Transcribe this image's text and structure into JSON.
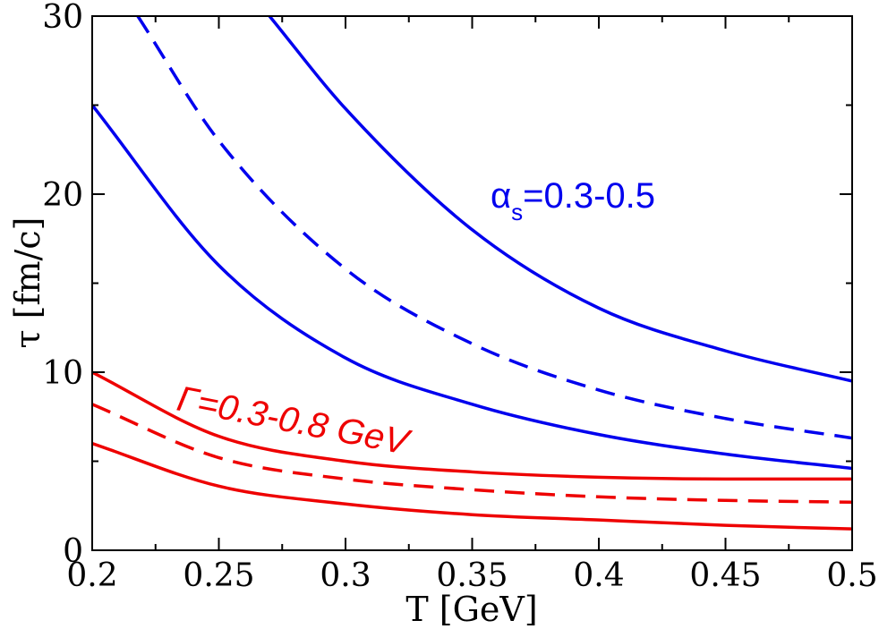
{
  "chart_data": {
    "type": "line",
    "title": "",
    "xlabel": "T [GeV]",
    "ylabel": "τ [fm/c]",
    "xlim": [
      0.2,
      0.5
    ],
    "ylim": [
      0,
      30
    ],
    "x_ticks": [
      "0.2",
      "0.25",
      "0.3",
      "0.35",
      "0.4",
      "0.45",
      "0.5"
    ],
    "y_ticks": [
      "0",
      "10",
      "20",
      "30"
    ],
    "grid": false,
    "annotations": [
      {
        "text_main": "α",
        "text_sub": "s",
        "text_rest": "=0.3-0.5",
        "color": "#0000ee"
      },
      {
        "text": "Γ=0.3-0.8 GeV",
        "color": "#ee0000"
      }
    ],
    "series": [
      {
        "color": "#0000ee",
        "dash": "solid",
        "points": [
          [
            0.27,
            30.0
          ],
          [
            0.3,
            24.8
          ],
          [
            0.35,
            18.0
          ],
          [
            0.4,
            13.6
          ],
          [
            0.45,
            11.2
          ],
          [
            0.5,
            9.5
          ]
        ]
      },
      {
        "color": "#0000ee",
        "dash": "dashed",
        "points": [
          [
            0.218,
            30.0
          ],
          [
            0.25,
            23.0
          ],
          [
            0.3,
            15.8
          ],
          [
            0.35,
            11.6
          ],
          [
            0.4,
            9.0
          ],
          [
            0.45,
            7.4
          ],
          [
            0.5,
            6.3
          ]
        ]
      },
      {
        "color": "#0000ee",
        "dash": "solid",
        "points": [
          [
            0.2,
            25.0
          ],
          [
            0.25,
            16.0
          ],
          [
            0.3,
            10.8
          ],
          [
            0.35,
            8.2
          ],
          [
            0.4,
            6.5
          ],
          [
            0.45,
            5.4
          ],
          [
            0.5,
            4.6
          ]
        ]
      },
      {
        "color": "#ee0000",
        "dash": "solid",
        "points": [
          [
            0.2,
            10.0
          ],
          [
            0.25,
            6.4
          ],
          [
            0.3,
            5.0
          ],
          [
            0.35,
            4.4
          ],
          [
            0.4,
            4.1
          ],
          [
            0.45,
            4.0
          ],
          [
            0.5,
            4.0
          ]
        ]
      },
      {
        "color": "#ee0000",
        "dash": "dashed",
        "points": [
          [
            0.2,
            8.2
          ],
          [
            0.25,
            5.2
          ],
          [
            0.3,
            4.0
          ],
          [
            0.35,
            3.4
          ],
          [
            0.4,
            3.0
          ],
          [
            0.45,
            2.8
          ],
          [
            0.5,
            2.7
          ]
        ]
      },
      {
        "color": "#ee0000",
        "dash": "solid",
        "points": [
          [
            0.2,
            6.0
          ],
          [
            0.25,
            3.6
          ],
          [
            0.3,
            2.6
          ],
          [
            0.35,
            2.0
          ],
          [
            0.4,
            1.7
          ],
          [
            0.45,
            1.4
          ],
          [
            0.5,
            1.2
          ]
        ]
      }
    ]
  }
}
